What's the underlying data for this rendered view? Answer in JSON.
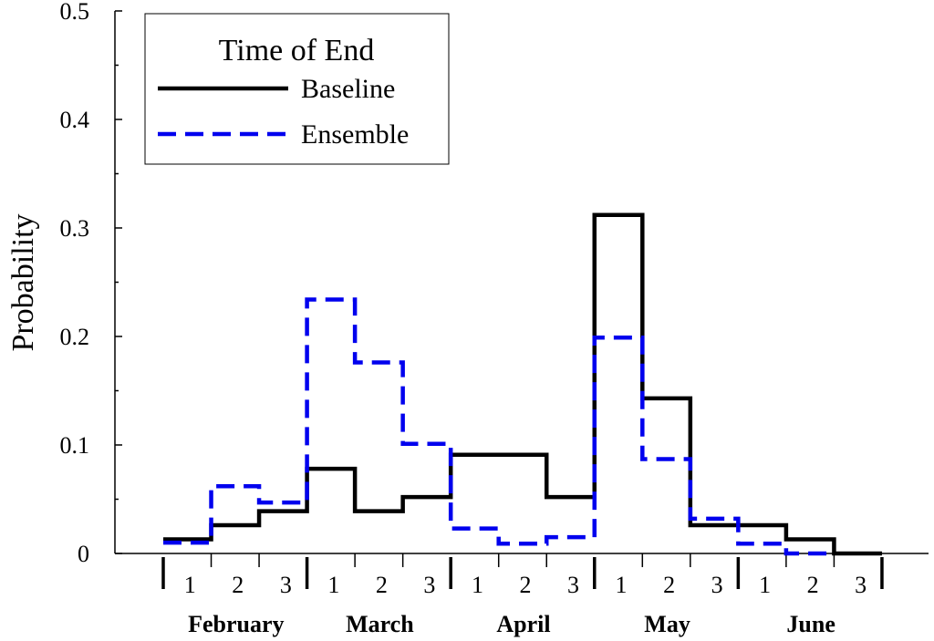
{
  "chart_data": {
    "type": "line",
    "style": "step",
    "ylabel": "Probability",
    "xlabel": "",
    "ylim": [
      0,
      0.5
    ],
    "yticks": [
      "0",
      "0.1",
      "0.2",
      "0.3",
      "0.4",
      "0.5"
    ],
    "grid": false,
    "legend": {
      "title": "Time of End",
      "placement": "top-left"
    },
    "months": [
      "February",
      "March",
      "April",
      "May",
      "June"
    ],
    "sub_periods": [
      "1",
      "2",
      "3"
    ],
    "series": [
      {
        "name": "Baseline",
        "color": "#000000",
        "dash": "solid",
        "values": [
          0.013,
          0.026,
          0.039,
          0.078,
          0.039,
          0.052,
          0.091,
          0.091,
          0.052,
          0.312,
          0.143,
          0.026,
          0.026,
          0.013,
          0.0
        ]
      },
      {
        "name": "Ensemble",
        "color": "#0000ee",
        "dash": "dashed",
        "values": [
          0.01,
          0.062,
          0.047,
          0.234,
          0.176,
          0.101,
          0.023,
          0.009,
          0.015,
          0.199,
          0.087,
          0.032,
          0.009,
          0.0,
          null
        ]
      }
    ]
  }
}
